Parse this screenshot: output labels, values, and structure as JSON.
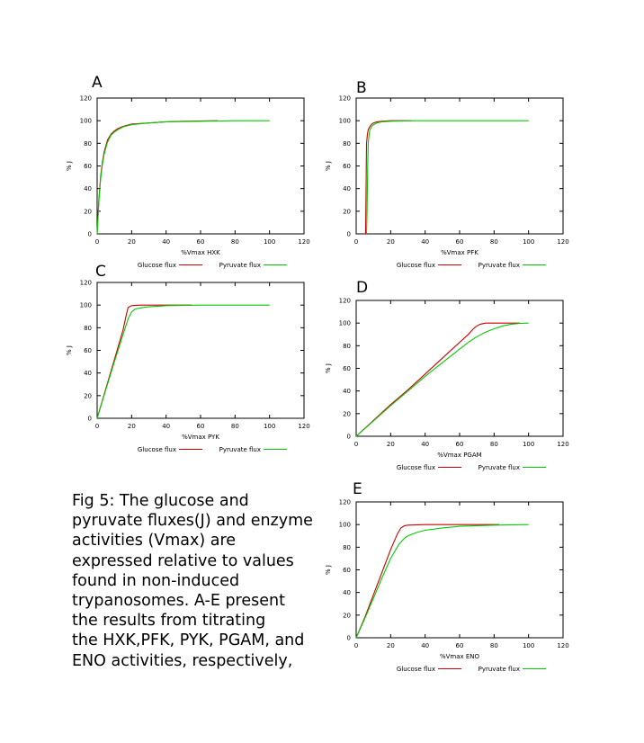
{
  "caption_lines": [
    "Fig 5: The glucose and",
    "pyruvate fluxes(J) and enzyme",
    "activities (Vmax) are",
    "expressed relative to values",
    "found in non-induced",
    "trypanosomes. A-E present",
    "the results from titrating",
    "the HXK,PFK, PYK, PGAM, and",
    "ENO activities, respectively,"
  ],
  "colors": {
    "glucose": "#cc0000",
    "pyruvate": "#00cc00"
  },
  "chart_data": [
    {
      "type": "line",
      "panel_label": "A",
      "xlabel": "%Vmax HXK",
      "ylabel": "% J",
      "xlim": [
        0,
        120
      ],
      "ylim": [
        0,
        120
      ],
      "xticks": [
        0,
        20,
        40,
        60,
        80,
        100,
        120
      ],
      "yticks": [
        0,
        20,
        40,
        60,
        80,
        100,
        120
      ],
      "legend_position": "bottom",
      "series": [
        {
          "name": "Glucose flux",
          "color": "#cc0000",
          "x": [
            0,
            1,
            2,
            3,
            4,
            6,
            8,
            10,
            12,
            15,
            20,
            30,
            40,
            50,
            70
          ],
          "y": [
            0,
            30,
            50,
            63,
            72,
            83,
            88,
            91,
            93,
            95,
            97,
            98,
            99,
            99.5,
            100
          ]
        },
        {
          "name": "Pyruvate flux",
          "color": "#00cc00",
          "x": [
            0,
            1,
            2,
            3,
            4,
            6,
            8,
            10,
            12,
            15,
            20,
            30,
            40,
            60,
            80,
            100
          ],
          "y": [
            0,
            28,
            48,
            61,
            70,
            81,
            87,
            90,
            92,
            94.5,
            96.5,
            98,
            99,
            99.5,
            100,
            100
          ]
        }
      ]
    },
    {
      "type": "line",
      "panel_label": "B",
      "xlabel": "%Vmax PFK",
      "ylabel": "% J",
      "xlim": [
        0,
        120
      ],
      "ylim": [
        0,
        120
      ],
      "xticks": [
        0,
        20,
        40,
        60,
        80,
        100,
        120
      ],
      "yticks": [
        0,
        20,
        40,
        60,
        80,
        100,
        120
      ],
      "legend_position": "bottom",
      "series": [
        {
          "name": "Glucose flux",
          "color": "#cc0000",
          "x": [
            5.5,
            6,
            6.5,
            7,
            8,
            9,
            10,
            12,
            15,
            20,
            25,
            32
          ],
          "y": [
            0,
            80,
            88,
            92,
            95,
            97,
            98,
            99,
            99.5,
            100,
            100,
            100
          ]
        },
        {
          "name": "Pyruvate flux",
          "color": "#00cc00",
          "x": [
            6,
            6.3,
            6.7,
            7,
            7.5,
            8,
            9,
            10,
            12,
            15,
            20,
            30,
            50,
            75,
            100
          ],
          "y": [
            0,
            20,
            60,
            80,
            88,
            92,
            95,
            96.5,
            98,
            99,
            99.5,
            100,
            100,
            100,
            100
          ]
        }
      ]
    },
    {
      "type": "line",
      "panel_label": "C",
      "xlabel": "%Vmax PYK",
      "ylabel": "% J",
      "xlim": [
        0,
        120
      ],
      "ylim": [
        0,
        120
      ],
      "xticks": [
        0,
        20,
        40,
        60,
        80,
        100,
        120
      ],
      "yticks": [
        0,
        20,
        40,
        60,
        80,
        100,
        120
      ],
      "legend_position": "bottom",
      "series": [
        {
          "name": "Glucose flux",
          "color": "#cc0000",
          "x": [
            0,
            5,
            10,
            15,
            17,
            18,
            20,
            25,
            35,
            55
          ],
          "y": [
            0,
            26,
            52,
            78,
            92,
            98,
            99.5,
            100,
            100,
            100
          ]
        },
        {
          "name": "Pyruvate flux",
          "color": "#00cc00",
          "x": [
            0,
            5,
            10,
            15,
            18,
            20,
            22,
            25,
            30,
            40,
            60,
            80,
            100
          ],
          "y": [
            0,
            25,
            50,
            74,
            88,
            94,
            96.5,
            97.5,
            98.5,
            99.5,
            100,
            100,
            100
          ]
        }
      ]
    },
    {
      "type": "line",
      "panel_label": "D",
      "xlabel": "%Vmax PGAM",
      "ylabel": "% J",
      "xlim": [
        0,
        120
      ],
      "ylim": [
        0,
        120
      ],
      "xticks": [
        0,
        20,
        40,
        60,
        80,
        100,
        120
      ],
      "yticks": [
        0,
        20,
        40,
        60,
        80,
        100,
        120
      ],
      "legend_position": "bottom",
      "series": [
        {
          "name": "Glucose flux",
          "color": "#cc0000",
          "x": [
            0,
            10,
            20,
            30,
            40,
            50,
            60,
            65,
            68,
            70,
            72,
            75,
            80,
            90,
            95
          ],
          "y": [
            0,
            14,
            28,
            41,
            55,
            69,
            83,
            90,
            95,
            97.5,
            99,
            100,
            100,
            100,
            100
          ]
        },
        {
          "name": "Pyruvate flux",
          "color": "#00cc00",
          "x": [
            0,
            10,
            20,
            30,
            40,
            50,
            60,
            65,
            70,
            75,
            80,
            85,
            90,
            95,
            100
          ],
          "y": [
            0,
            13.5,
            27,
            40,
            53,
            65,
            77,
            83,
            88,
            92,
            95,
            97.5,
            99,
            99.7,
            100
          ]
        }
      ]
    },
    {
      "type": "line",
      "panel_label": "E",
      "xlabel": "%Vmax ENO",
      "ylabel": "% J",
      "xlim": [
        0,
        120
      ],
      "ylim": [
        0,
        120
      ],
      "xticks": [
        0,
        20,
        40,
        60,
        80,
        100,
        120
      ],
      "yticks": [
        0,
        20,
        40,
        60,
        80,
        100,
        120
      ],
      "legend_position": "bottom",
      "series": [
        {
          "name": "Glucose flux",
          "color": "#cc0000",
          "x": [
            0,
            5,
            10,
            15,
            20,
            24,
            26,
            28,
            30,
            40,
            60,
            83
          ],
          "y": [
            0,
            18,
            38,
            58,
            78,
            92,
            97,
            99,
            99.5,
            100,
            100,
            100
          ]
        },
        {
          "name": "Pyruvate flux",
          "color": "#00cc00",
          "x": [
            0,
            5,
            10,
            15,
            20,
            25,
            28,
            30,
            35,
            40,
            50,
            60,
            80,
            100
          ],
          "y": [
            0,
            17,
            35,
            53,
            70,
            83,
            88,
            90,
            93,
            95,
            97,
            98.5,
            99.5,
            100
          ]
        }
      ]
    }
  ]
}
